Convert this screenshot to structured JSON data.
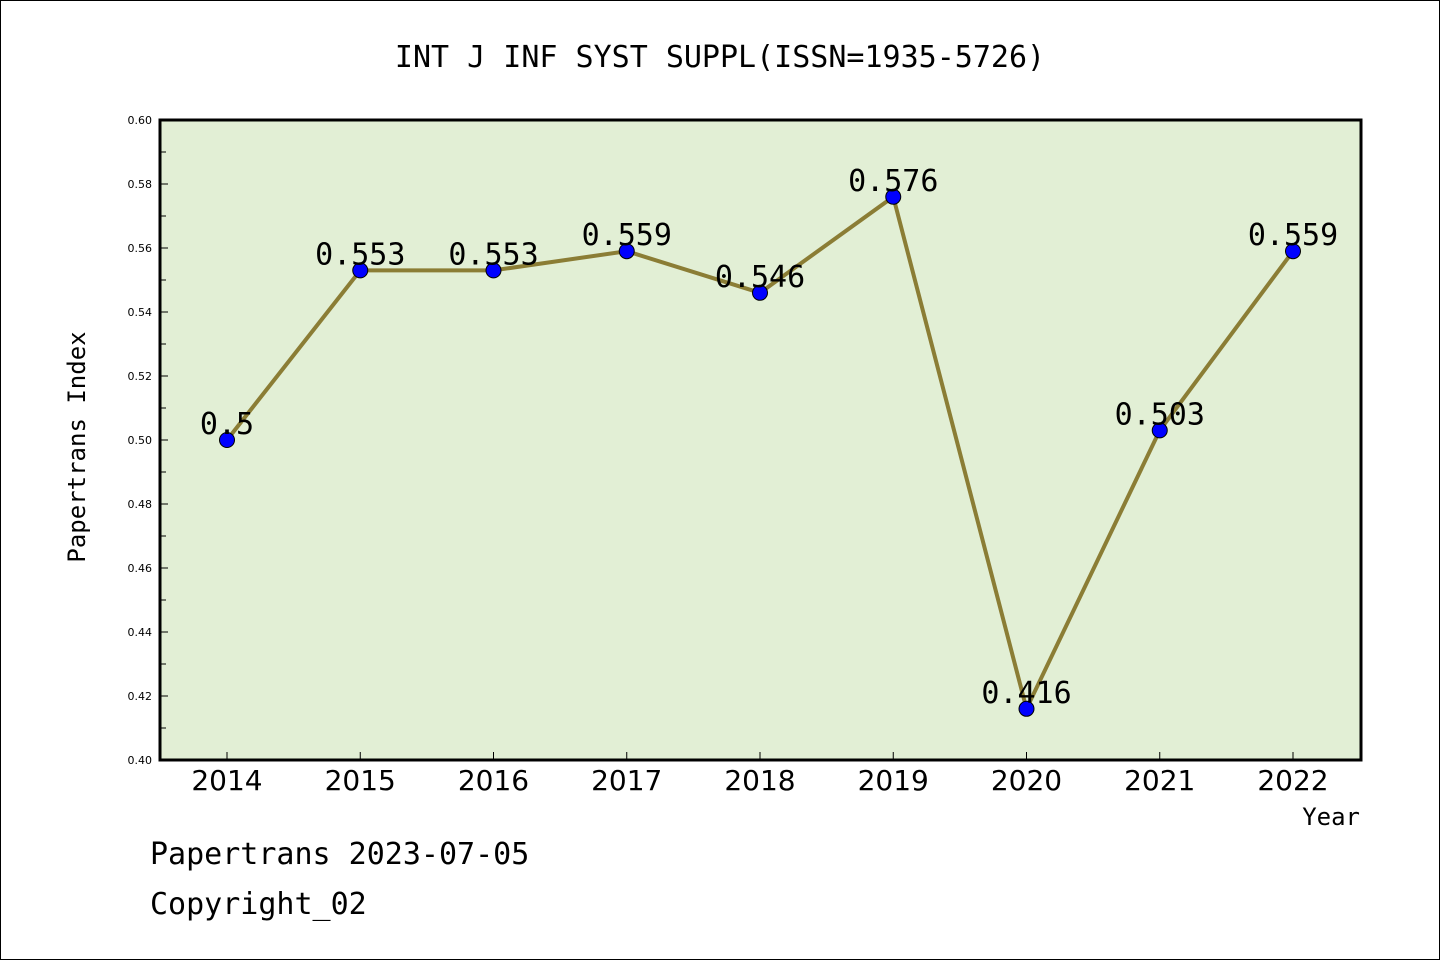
{
  "chart_data": {
    "type": "line",
    "title": "INT J INF SYST SUPPL(ISSN=1935-5726)",
    "xlabel": "Year",
    "ylabel": "Papertrans Index",
    "categories": [
      "2014",
      "2015",
      "2016",
      "2017",
      "2018",
      "2019",
      "2020",
      "2021",
      "2022"
    ],
    "series": [
      {
        "values": [
          0.5,
          0.553,
          0.553,
          0.559,
          0.546,
          0.576,
          0.416,
          0.503,
          0.559
        ],
        "labels": [
          "0.5",
          "0.553",
          "0.553",
          "0.559",
          "0.546",
          "0.576",
          "0.416",
          "0.503",
          "0.559"
        ]
      }
    ],
    "ylim": [
      0.4,
      0.6
    ],
    "yticks": [
      "0.40",
      "0.42",
      "0.44",
      "0.46",
      "0.48",
      "0.50",
      "0.52",
      "0.54",
      "0.56",
      "0.58",
      "0.60"
    ],
    "grid": false,
    "colors": {
      "plot_bg": "#e2efd5",
      "line": "#8b7d35",
      "marker": "#0000ff"
    }
  },
  "footer": {
    "line1": "Papertrans 2023-07-05",
    "line2": "Copyright_02"
  }
}
